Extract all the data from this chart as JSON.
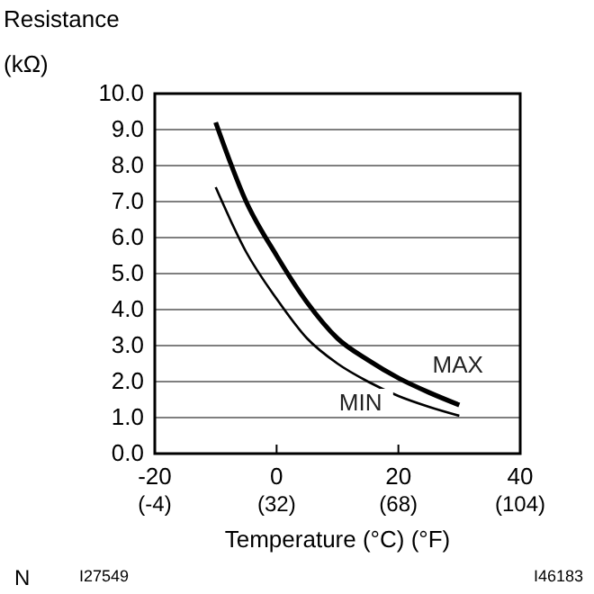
{
  "chart_data": {
    "type": "line",
    "xlabel": "Temperature (°C) (°F)",
    "ylabel": "Resistance (kΩ)",
    "xlim": [
      -20,
      40
    ],
    "xticks": [
      -20,
      0,
      20,
      40
    ],
    "x2lim": [
      -4,
      104
    ],
    "x2ticks": [
      {
        "value": -4,
        "label": "(-4)"
      },
      {
        "value": 32,
        "label": "(32)"
      },
      {
        "value": 68,
        "label": "(68)"
      },
      {
        "value": 104,
        "label": "(104)"
      }
    ],
    "ylim": [
      0,
      10
    ],
    "yticks": [
      {
        "value": 0,
        "label": "0.0"
      },
      {
        "value": 1,
        "label": "1.0"
      },
      {
        "value": 2,
        "label": "2.0"
      },
      {
        "value": 3,
        "label": "3.0"
      },
      {
        "value": 4,
        "label": "4.0"
      },
      {
        "value": 5,
        "label": "5.0"
      },
      {
        "value": 6,
        "label": "6.0"
      },
      {
        "value": 7,
        "label": "7.0"
      },
      {
        "value": 8,
        "label": "8.0"
      },
      {
        "value": 9,
        "label": "9.0"
      },
      {
        "value": 10,
        "label": "10.0"
      }
    ],
    "grid": "y",
    "marker": "none",
    "line_style": "solid",
    "x": [
      -10,
      -5,
      0,
      5,
      10,
      15,
      20,
      25,
      30
    ],
    "series": [
      {
        "name": "MAX",
        "color": "#000000",
        "values": [
          9.2,
          7.0,
          5.5,
          4.2,
          3.2,
          2.6,
          2.1,
          1.7,
          1.35
        ]
      },
      {
        "name": "MIN",
        "color": "#000000",
        "values": [
          7.4,
          5.6,
          4.3,
          3.2,
          2.5,
          2.0,
          1.6,
          1.3,
          1.05
        ]
      }
    ],
    "annotations": [
      "N",
      "I27549",
      "I46183"
    ]
  }
}
